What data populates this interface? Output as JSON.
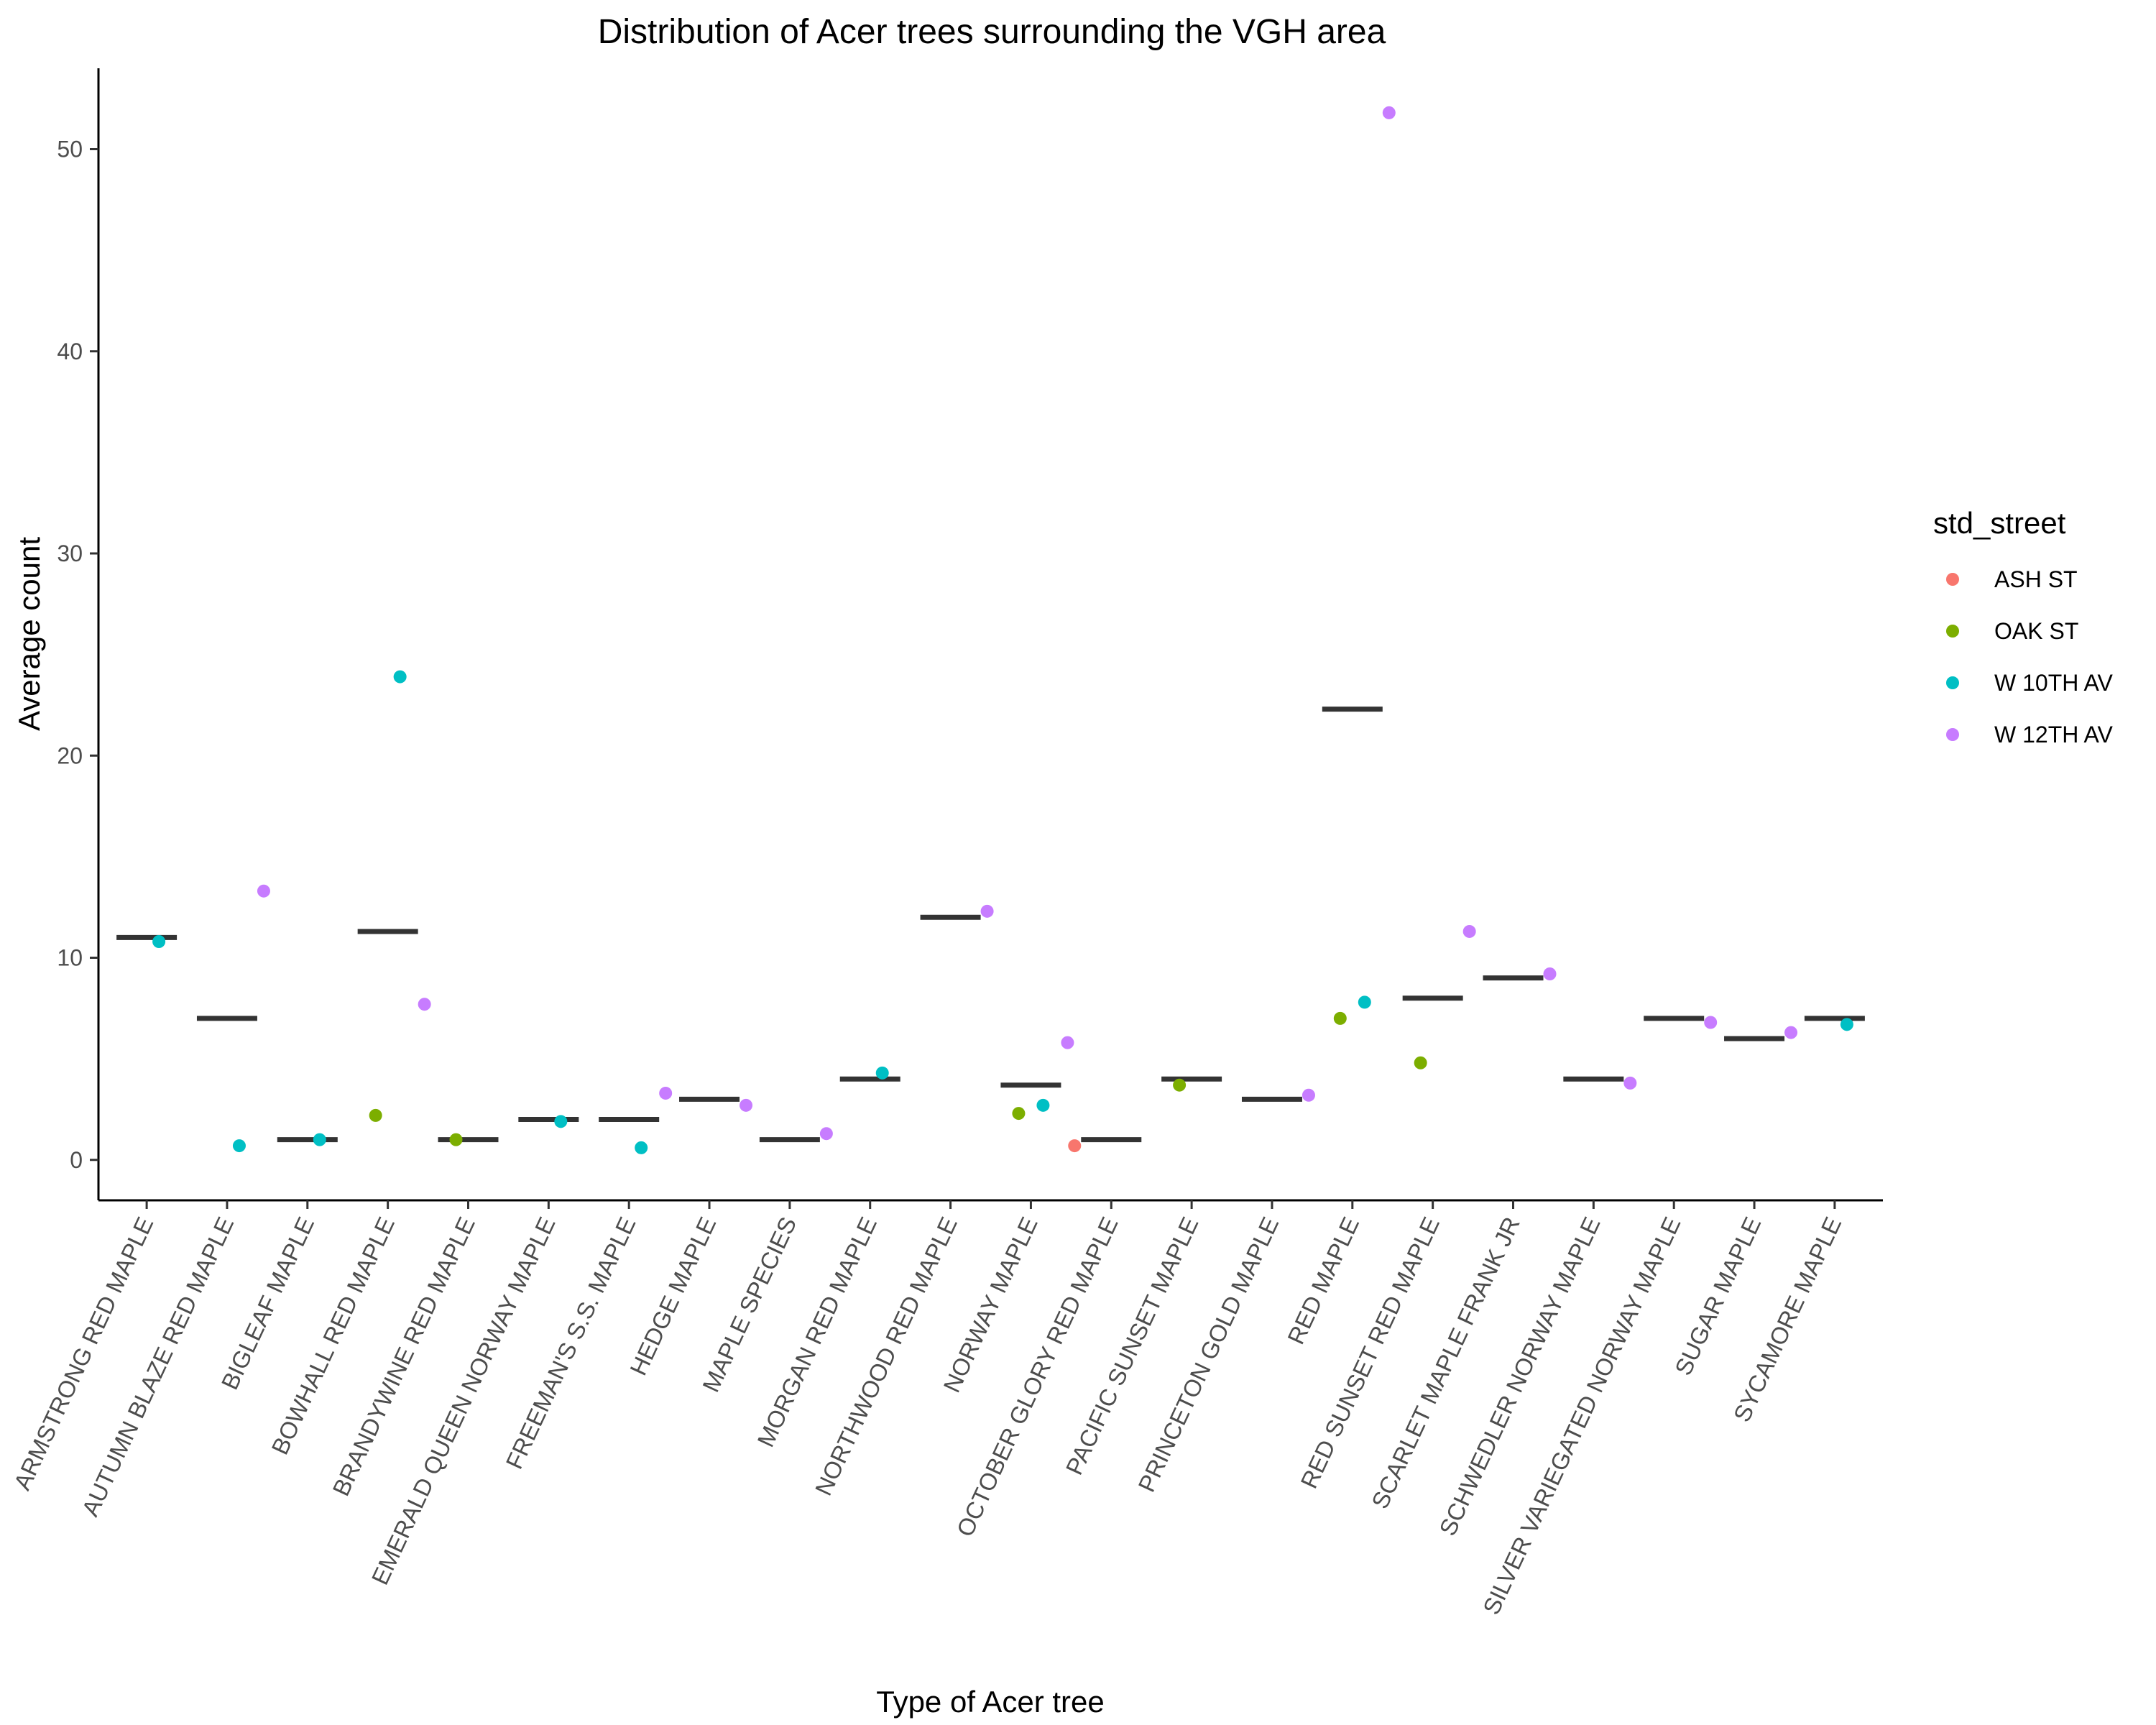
{
  "chart_data": {
    "type": "scatter",
    "title": "Distribution of Acer trees surrounding the VGH area",
    "xlabel": "Type of Acer tree",
    "ylabel": "Average count",
    "ylim": [
      -2,
      54
    ],
    "yticks": [
      0,
      10,
      20,
      30,
      40,
      50
    ],
    "grid": false,
    "legend": {
      "title": "std_street",
      "placement": "right",
      "entries": [
        {
          "name": "ASH ST",
          "color": "#F8766D"
        },
        {
          "name": "OAK ST",
          "color": "#7CAE00"
        },
        {
          "name": "W 10TH AV",
          "color": "#00BFC4"
        },
        {
          "name": "W 12TH AV",
          "color": "#C77CFF"
        }
      ]
    },
    "categories": [
      "ARMSTRONG RED MAPLE",
      "AUTUMN BLAZE RED MAPLE",
      "BIGLEAF MAPLE",
      "BOWHALL RED MAPLE",
      "BRANDYWINE RED MAPLE",
      "EMERALD QUEEN NORWAY MAPLE",
      "FREEMAN'S S.S. MAPLE",
      "HEDGE MAPLE",
      "MAPLE SPECIES",
      "MORGAN RED MAPLE",
      "NORTHWOOD RED MAPLE",
      "NORWAY MAPLE",
      "OCTOBER GLORY RED MAPLE",
      "PACIFIC SUNSET MAPLE",
      "PRINCETON GOLD MAPLE",
      "RED MAPLE",
      "RED SUNSET RED MAPLE",
      "SCARLET MAPLE FRANK JR",
      "SCHWEDLER NORWAY MAPLE",
      "SILVER VARIEGATED NORWAY MAPLE",
      "SUGAR MAPLE",
      "SYCAMORE MAPLE"
    ],
    "means": [
      11,
      7,
      1,
      11.3,
      1,
      2,
      2,
      3,
      1,
      4,
      12,
      3.7,
      1,
      4,
      3,
      22.3,
      8,
      9,
      4,
      7,
      6,
      7
    ],
    "points": [
      {
        "category": "ARMSTRONG RED MAPLE",
        "street": "W 10TH AV",
        "y": 10.8
      },
      {
        "category": "AUTUMN BLAZE RED MAPLE",
        "street": "W 12TH AV",
        "y": 13.3
      },
      {
        "category": "AUTUMN BLAZE RED MAPLE",
        "street": "W 10TH AV",
        "y": 0.7
      },
      {
        "category": "BIGLEAF MAPLE",
        "street": "W 10TH AV",
        "y": 1
      },
      {
        "category": "BOWHALL RED MAPLE",
        "street": "W 10TH AV",
        "y": 23.9
      },
      {
        "category": "BOWHALL RED MAPLE",
        "street": "W 12TH AV",
        "y": 7.7
      },
      {
        "category": "BOWHALL RED MAPLE",
        "street": "OAK ST",
        "y": 2.2
      },
      {
        "category": "BRANDYWINE RED MAPLE",
        "street": "OAK ST",
        "y": 1
      },
      {
        "category": "EMERALD QUEEN NORWAY MAPLE",
        "street": "W 10TH AV",
        "y": 1.9
      },
      {
        "category": "FREEMAN'S S.S. MAPLE",
        "street": "W 12TH AV",
        "y": 3.3
      },
      {
        "category": "FREEMAN'S S.S. MAPLE",
        "street": "W 10TH AV",
        "y": 0.6
      },
      {
        "category": "HEDGE MAPLE",
        "street": "W 12TH AV",
        "y": 2.7
      },
      {
        "category": "MAPLE SPECIES",
        "street": "W 12TH AV",
        "y": 1.3
      },
      {
        "category": "MORGAN RED MAPLE",
        "street": "W 10TH AV",
        "y": 4.3
      },
      {
        "category": "NORTHWOOD RED MAPLE",
        "street": "W 12TH AV",
        "y": 12.3
      },
      {
        "category": "NORWAY MAPLE",
        "street": "W 12TH AV",
        "y": 5.8
      },
      {
        "category": "NORWAY MAPLE",
        "street": "W 10TH AV",
        "y": 2.7
      },
      {
        "category": "NORWAY MAPLE",
        "street": "OAK ST",
        "y": 2.3
      },
      {
        "category": "OCTOBER GLORY RED MAPLE",
        "street": "ASH ST",
        "y": 0.7
      },
      {
        "category": "PACIFIC SUNSET MAPLE",
        "street": "OAK ST",
        "y": 3.7
      },
      {
        "category": "PRINCETON GOLD MAPLE",
        "street": "W 12TH AV",
        "y": 3.2
      },
      {
        "category": "RED MAPLE",
        "street": "W 12TH AV",
        "y": 51.8
      },
      {
        "category": "RED MAPLE",
        "street": "W 10TH AV",
        "y": 7.8
      },
      {
        "category": "RED MAPLE",
        "street": "OAK ST",
        "y": 7
      },
      {
        "category": "RED SUNSET RED MAPLE",
        "street": "W 12TH AV",
        "y": 11.3
      },
      {
        "category": "RED SUNSET RED MAPLE",
        "street": "OAK ST",
        "y": 4.8
      },
      {
        "category": "SCARLET MAPLE FRANK JR",
        "street": "W 12TH AV",
        "y": 9.2
      },
      {
        "category": "SCHWEDLER NORWAY MAPLE",
        "street": "W 12TH AV",
        "y": 3.8
      },
      {
        "category": "SILVER VARIEGATED NORWAY MAPLE",
        "street": "W 12TH AV",
        "y": 6.8
      },
      {
        "category": "SUGAR MAPLE",
        "street": "W 12TH AV",
        "y": 6.3
      },
      {
        "category": "SYCAMORE MAPLE",
        "street": "W 10TH AV",
        "y": 6.7
      }
    ]
  }
}
